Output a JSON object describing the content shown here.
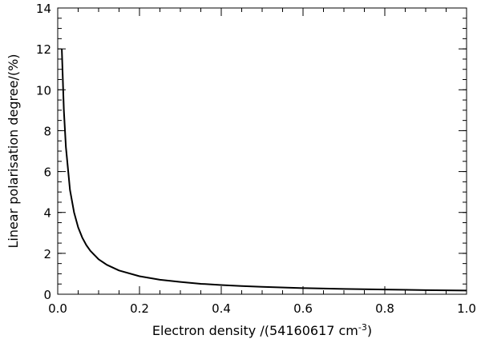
{
  "chart_data": {
    "type": "line",
    "title": "",
    "xlabel": "Electron density /(54160617 cm",
    "xlabel_superscript": "-3",
    "xlabel_suffix": ")",
    "ylabel": "Linear polarisation degree/(%)",
    "xlim": [
      0.0,
      1.0
    ],
    "ylim": [
      0,
      14
    ],
    "x_ticks": [
      "0.0",
      "0.2",
      "0.4",
      "0.6",
      "0.8",
      "1.0"
    ],
    "y_ticks": [
      "0",
      "2",
      "4",
      "6",
      "8",
      "10",
      "12",
      "14"
    ],
    "x_minor_step": 0.05,
    "y_minor_step": 0.5,
    "grid": false,
    "legend": "none",
    "series": [
      {
        "color": "#000000",
        "x": [
          0.01,
          0.015,
          0.02,
          0.03,
          0.04,
          0.05,
          0.06,
          0.07,
          0.08,
          0.1,
          0.12,
          0.15,
          0.2,
          0.25,
          0.3,
          0.35,
          0.4,
          0.45,
          0.5,
          0.6,
          0.7,
          0.8,
          0.9,
          1.0
        ],
        "y": [
          12.0,
          9.0,
          7.2,
          5.1,
          4.0,
          3.27,
          2.77,
          2.4,
          2.12,
          1.71,
          1.44,
          1.16,
          0.88,
          0.71,
          0.6,
          0.51,
          0.45,
          0.4,
          0.36,
          0.3,
          0.26,
          0.23,
          0.2,
          0.18
        ]
      }
    ]
  }
}
